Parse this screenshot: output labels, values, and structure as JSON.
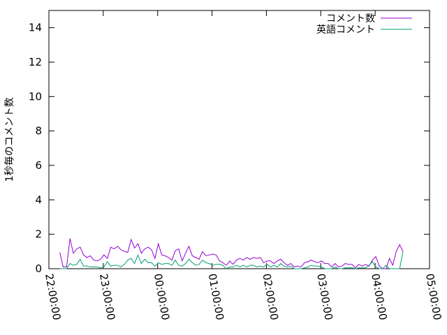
{
  "chart_data": {
    "type": "line",
    "title": "",
    "xlabel": "",
    "ylabel": "1秒毎のコメント数",
    "ylim": [
      0,
      15
    ],
    "yticks": [
      "0",
      "2",
      "4",
      "6",
      "8",
      "10",
      "12",
      "14"
    ],
    "xlim": [
      "22:00:00",
      "05:00:00"
    ],
    "xticks": [
      "22:00:00",
      "23:00:00",
      "00:00:00",
      "01:00:00",
      "02:00:00",
      "03:00:00",
      "04:00:00",
      "05:00:00"
    ],
    "grid": false,
    "legend_position": "top-right",
    "x": [
      "22:12:00",
      "22:15:45",
      "22:19:30",
      "22:23:15",
      "22:27:00",
      "22:30:45",
      "22:34:30",
      "22:38:15",
      "22:42:00",
      "22:45:45",
      "22:49:30",
      "22:53:15",
      "22:57:00",
      "23:00:45",
      "23:04:30",
      "23:08:15",
      "23:12:00",
      "23:15:45",
      "23:19:30",
      "23:23:15",
      "23:27:00",
      "23:30:45",
      "23:34:30",
      "23:38:15",
      "23:42:00",
      "23:45:45",
      "23:49:30",
      "23:53:15",
      "23:57:00",
      "00:00:45",
      "00:04:30",
      "00:08:15",
      "00:12:00",
      "00:15:45",
      "00:19:30",
      "00:23:15",
      "00:27:00",
      "00:30:45",
      "00:34:30",
      "00:38:15",
      "00:42:00",
      "00:45:45",
      "00:49:30",
      "00:53:15",
      "00:57:00",
      "01:00:45",
      "01:04:30",
      "01:08:15",
      "01:12:00",
      "01:15:45",
      "01:19:30",
      "01:23:15",
      "01:27:00",
      "01:30:45",
      "01:34:30",
      "01:38:15",
      "01:42:00",
      "01:45:45",
      "01:49:30",
      "01:53:15",
      "01:57:00",
      "02:00:45",
      "02:04:30",
      "02:08:15",
      "02:12:00",
      "02:15:45",
      "02:19:30",
      "02:23:15",
      "02:27:00",
      "02:30:45",
      "02:34:30",
      "02:38:15",
      "02:42:00",
      "02:45:45",
      "02:49:30",
      "02:53:15",
      "02:57:00",
      "03:00:45",
      "03:04:30",
      "03:08:15",
      "03:12:00",
      "03:15:45",
      "03:19:30",
      "03:23:15",
      "03:27:00",
      "03:30:45",
      "03:34:30",
      "03:38:15",
      "03:42:00",
      "03:45:45",
      "03:49:30",
      "03:53:15",
      "03:57:00",
      "04:00:45",
      "04:04:30",
      "04:08:15",
      "04:12:00",
      "04:15:45",
      "04:19:30",
      "04:23:15",
      "04:27:00",
      "04:30:45"
    ],
    "series": [
      {
        "name": "コメント数",
        "color": "#9400d3",
        "values": [
          0.95,
          0.1,
          0.1,
          1.75,
          0.9,
          1.15,
          1.25,
          0.8,
          0.65,
          0.75,
          0.5,
          0.45,
          0.55,
          0.8,
          0.6,
          1.25,
          1.15,
          1.3,
          1.1,
          1.0,
          0.95,
          1.7,
          1.2,
          1.45,
          0.9,
          1.15,
          1.25,
          1.1,
          0.6,
          1.45,
          0.8,
          0.75,
          0.65,
          0.5,
          1.05,
          1.15,
          0.45,
          0.9,
          1.3,
          0.75,
          0.65,
          0.55,
          1.0,
          0.75,
          0.8,
          0.85,
          0.8,
          0.45,
          0.35,
          0.2,
          0.45,
          0.25,
          0.5,
          0.6,
          0.5,
          0.65,
          0.55,
          0.65,
          0.6,
          0.65,
          0.35,
          0.45,
          0.45,
          0.3,
          0.45,
          0.55,
          0.35,
          0.2,
          0.3,
          0.1,
          0.15,
          0.1,
          0.35,
          0.4,
          0.5,
          0.4,
          0.35,
          0.45,
          0.3,
          0.3,
          0.1,
          0.3,
          0.1,
          0.15,
          0.3,
          0.25,
          0.25,
          0.05,
          0.25,
          0.15,
          0.25,
          0.15,
          0.5,
          0.7,
          0.15,
          0,
          0,
          0.6,
          0.2,
          1.0,
          1.4,
          1.0
        ]
      },
      {
        "name": "英語コメント",
        "color": "#009e73",
        "values": [
          0,
          0,
          0,
          0.3,
          0.2,
          0.25,
          0.55,
          0.15,
          0.15,
          0.1,
          0.1,
          0.1,
          0.05,
          0.1,
          0.4,
          0.15,
          0.2,
          0.2,
          0.1,
          0.25,
          0.5,
          0.6,
          0.3,
          0.8,
          0.3,
          0.55,
          0.35,
          0.35,
          0.15,
          0.35,
          0.25,
          0.3,
          0.3,
          0.2,
          0.5,
          0.2,
          0.15,
          0.3,
          0.55,
          0.35,
          0.2,
          0.25,
          0.5,
          0.35,
          0.3,
          0.2,
          0.25,
          0.25,
          0.2,
          0,
          0.1,
          0.1,
          0.2,
          0.1,
          0.2,
          0.1,
          0.2,
          0.2,
          0.1,
          0.15,
          0.1,
          0.25,
          0.1,
          0.2,
          0.1,
          0.3,
          0.15,
          0.1,
          0.15,
          0,
          0,
          0,
          0.05,
          0.1,
          0.2,
          0.15,
          0.15,
          0.1,
          0,
          0,
          0,
          0.1,
          0,
          0,
          0.05,
          0.05,
          0.05,
          0,
          0.05,
          0.05,
          0.05,
          0.2,
          0.4,
          0.1,
          0,
          0,
          0.2,
          0,
          0,
          0,
          0,
          1.0
        ]
      }
    ]
  }
}
